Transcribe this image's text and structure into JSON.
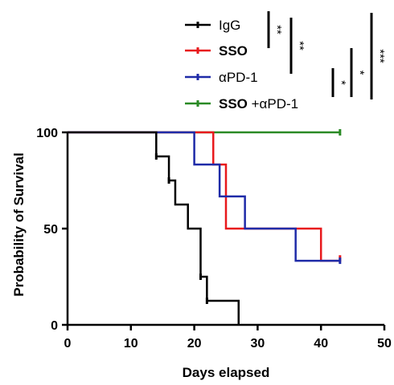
{
  "chart_data": {
    "type": "line",
    "step": true,
    "xlabel": "Days elapsed",
    "ylabel": "Probability of Survival",
    "xlim": [
      0,
      50
    ],
    "ylim": [
      0,
      100
    ],
    "xticks": [
      0,
      10,
      20,
      30,
      40,
      50
    ],
    "yticks": [
      0,
      50,
      100
    ],
    "grid": false,
    "legend_position": "top-right",
    "series": [
      {
        "name": "IgG",
        "color": "#000000",
        "points": [
          [
            0,
            100
          ],
          [
            14,
            100
          ],
          [
            14,
            87.5
          ],
          [
            16,
            87.5
          ],
          [
            16,
            75
          ],
          [
            17,
            75
          ],
          [
            17,
            62.5
          ],
          [
            19,
            62.5
          ],
          [
            19,
            50
          ],
          [
            21,
            50
          ],
          [
            21,
            25
          ],
          [
            22,
            25
          ],
          [
            22,
            12.5
          ],
          [
            27,
            12.5
          ],
          [
            27,
            0
          ]
        ],
        "censored": [
          [
            14,
            87.5
          ],
          [
            16,
            75
          ],
          [
            21,
            25
          ],
          [
            22,
            12.5
          ]
        ]
      },
      {
        "name": "SSO",
        "name_bold": true,
        "color": "#e8191c",
        "points": [
          [
            0,
            100
          ],
          [
            23,
            100
          ],
          [
            23,
            83.3
          ],
          [
            25,
            83.3
          ],
          [
            25,
            50
          ],
          [
            40,
            50
          ],
          [
            40,
            33.3
          ],
          [
            43,
            33.3
          ]
        ],
        "censored": [
          [
            43,
            34.5
          ]
        ]
      },
      {
        "name": "αPD-1",
        "color": "#1f2ba8",
        "points": [
          [
            0,
            100
          ],
          [
            20,
            100
          ],
          [
            20,
            83.3
          ],
          [
            24,
            83.3
          ],
          [
            24,
            66.7
          ],
          [
            28,
            66.7
          ],
          [
            28,
            50
          ],
          [
            36,
            50
          ],
          [
            36,
            33.3
          ],
          [
            43,
            33.3
          ]
        ],
        "censored": [
          [
            43,
            33.3
          ]
        ]
      },
      {
        "name_parts": [
          "SSO",
          "+αPD-1"
        ],
        "color": "#2a8a25",
        "points": [
          [
            14,
            100
          ],
          [
            43,
            100
          ]
        ],
        "censored": [
          [
            43,
            100
          ]
        ]
      }
    ],
    "significance": [
      {
        "label": "**",
        "comparison": "IgG vs SSO"
      },
      {
        "label": "**",
        "comparison": "IgG vs αPD-1"
      },
      {
        "label": "*",
        "comparison": "αPD-1 vs SSO +αPD-1"
      },
      {
        "label": "*",
        "comparison": "SSO vs SSO +αPD-1"
      },
      {
        "label": "***",
        "comparison": "IgG vs SSO +αPD-1"
      }
    ]
  }
}
